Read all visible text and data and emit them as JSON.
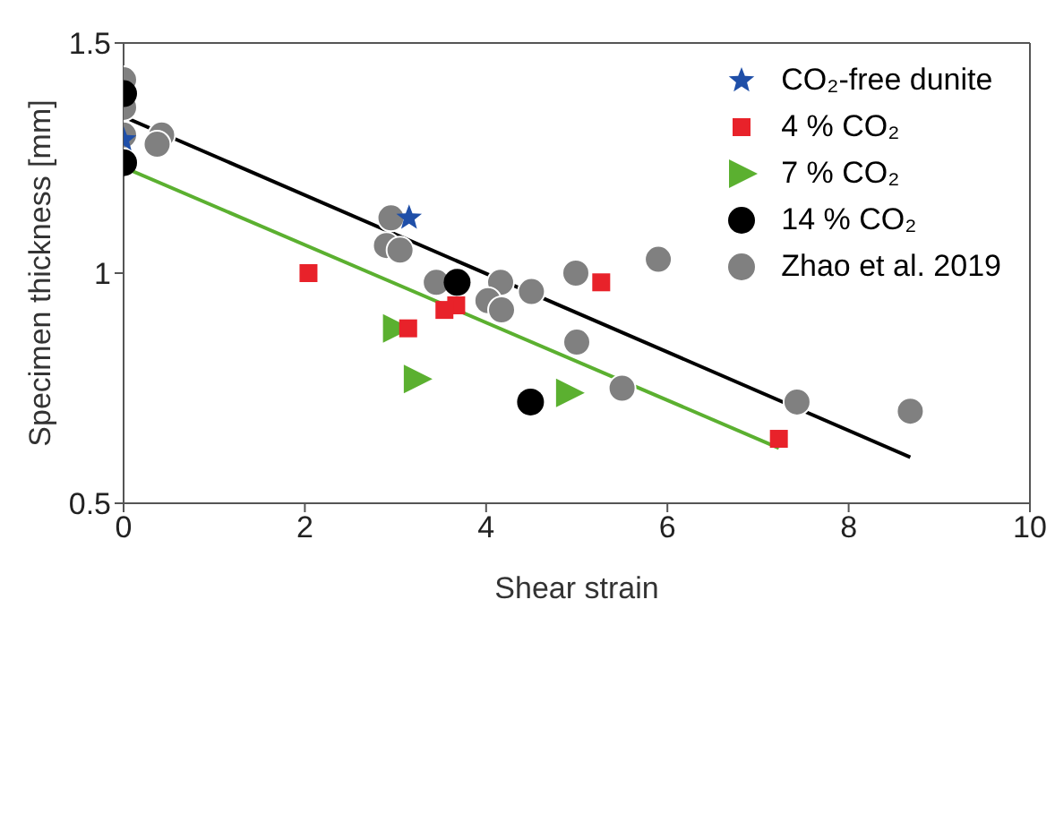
{
  "chart_data": {
    "type": "scatter",
    "xlabel": "Shear strain",
    "ylabel": "Specimen thickness [mm]",
    "xlim": [
      0,
      10
    ],
    "xticks": [
      0,
      2,
      4,
      6,
      8,
      10
    ],
    "ylim": [
      0.5,
      1.5
    ],
    "yticks": [
      0.5,
      1,
      1.5
    ],
    "grid": false,
    "legend": "top right",
    "series": [
      {
        "type": "line",
        "color": "#000000",
        "marker": "none",
        "x": [
          0,
          8.68
        ],
        "values": [
          1.34,
          0.6
        ]
      },
      {
        "type": "line",
        "color": "#5bb030",
        "marker": "none",
        "x": [
          0,
          7.23
        ],
        "values": [
          1.23,
          0.62
        ]
      },
      {
        "name": "CO₂-free dunite",
        "color": "#1f4fa8",
        "marker": "star",
        "x": [
          0,
          3.15
        ],
        "values": [
          1.29,
          1.12
        ]
      },
      {
        "name": "4 % CO₂",
        "color": "#e8222a",
        "marker": "square",
        "x": [
          2.04,
          5.27,
          3.67,
          3.54,
          3.14,
          7.23
        ],
        "values": [
          1.0,
          0.98,
          0.93,
          0.92,
          0.88,
          0.64
        ]
      },
      {
        "name": "7 % CO₂",
        "color": "#5bb030",
        "marker": "triangle",
        "x": [
          3.0,
          3.23,
          4.91
        ],
        "values": [
          0.88,
          0.77,
          0.74
        ]
      },
      {
        "name": "14 % CO₂",
        "color": "#000000",
        "marker": "circle",
        "x": [
          0,
          0,
          3.68,
          4.49
        ],
        "values": [
          1.39,
          1.24,
          0.98,
          0.72
        ]
      },
      {
        "name": "Zhao et al. 2019",
        "color": "#808080",
        "marker": "circle",
        "x": [
          0,
          0,
          0,
          0.42,
          0.37,
          2.95,
          2.9,
          3.05,
          4.99,
          3.45,
          4.16,
          4.5,
          4.02,
          4.17,
          5.9,
          5.0,
          5.5,
          7.43,
          8.68
        ],
        "values": [
          1.42,
          1.36,
          1.3,
          1.3,
          1.28,
          1.12,
          1.06,
          1.05,
          1.0,
          0.98,
          0.98,
          0.96,
          0.94,
          0.92,
          1.03,
          0.85,
          0.75,
          0.72,
          0.7
        ]
      }
    ]
  }
}
